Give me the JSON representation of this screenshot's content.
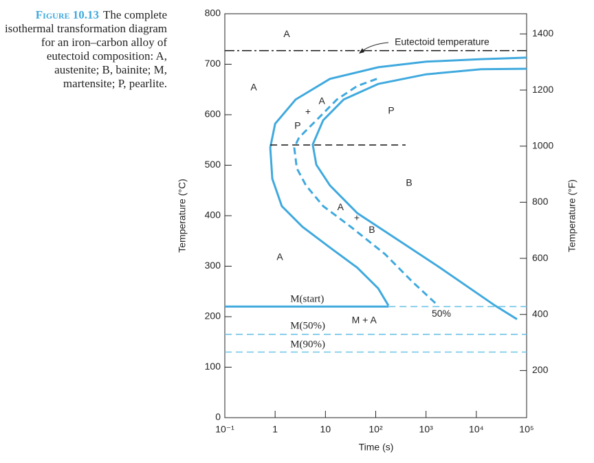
{
  "caption": {
    "label": "Figure 10.13",
    "text": "The complete isothermal transformation diagram for an iron–carbon alloy of eutectoid composition: A, austenite; B, bainite; M, martensite; P, pearlite."
  },
  "chart_data": {
    "type": "line",
    "xlabel": "Time (s)",
    "ylabel": "Temperature (°C)",
    "y2label": "Temperature (°F)",
    "xscale": "log",
    "xlim": [
      0.1,
      100000
    ],
    "ylim": [
      0,
      800
    ],
    "y2lim": [
      32,
      1472
    ],
    "xticks": [
      {
        "value": 0.1,
        "label": "10⁻¹"
      },
      1,
      10,
      {
        "value": 100,
        "label": "10²"
      },
      {
        "value": 1000,
        "label": "10³"
      },
      {
        "value": 10000,
        "label": "10⁴"
      },
      {
        "value": 100000,
        "label": "10⁵"
      }
    ],
    "yticks": [
      0,
      100,
      200,
      300,
      400,
      500,
      600,
      700,
      800
    ],
    "y2ticks": [
      200,
      400,
      600,
      800,
      1000,
      1200,
      1400
    ],
    "series": [
      {
        "color": "#3fa9de",
        "style": "solid",
        "x": [
          100000,
          12500,
          1000,
          112,
          12.3,
          2.56,
          1,
          0.8,
          0.88,
          1.36,
          3.5,
          12.3,
          43,
          112,
          179
        ],
        "values": [
          713,
          710,
          705,
          694,
          671,
          630,
          582,
          535,
          473,
          419,
          378,
          337,
          297,
          256,
          222
        ]
      },
      {
        "color": "#3fa9de",
        "style": "solid",
        "x": [
          100000,
          12500,
          1000,
          112,
          23,
          9,
          5.6,
          6.6,
          12.3,
          43,
          287,
          1900,
          23500,
          64300
        ],
        "values": [
          691,
          690,
          680,
          661,
          630,
          589,
          541,
          501,
          460,
          405,
          351,
          297,
          222,
          195
        ]
      },
      {
        "color": "#3fa9de",
        "style": "dashed",
        "x": [
          105,
          43,
          16.9,
          6.6,
          3.0,
          2.4,
          2.7,
          4.1,
          9,
          32,
          153,
          538,
          1730
        ],
        "values": [
          671,
          657,
          630,
          589,
          555,
          535,
          494,
          460,
          419,
          378,
          324,
          269,
          222
        ]
      },
      {
        "color": "#222222",
        "style": "dashdot",
        "x": [
          0.1,
          100000
        ],
        "values": [
          727,
          727
        ]
      },
      {
        "color": "#222222",
        "style": "dashed",
        "x": [
          0.8,
          393
        ],
        "values": [
          540,
          540
        ]
      },
      {
        "color": "#3fa9de",
        "style": "solid",
        "x": [
          0.1,
          180
        ],
        "values": [
          220,
          220
        ]
      },
      {
        "color": "#6cc3e6",
        "style": "dashed",
        "x": [
          180,
          100000
        ],
        "values": [
          220,
          220
        ]
      },
      {
        "color": "#6cc3e6",
        "style": "dashed",
        "x": [
          0.1,
          100000
        ],
        "values": [
          165,
          165
        ]
      },
      {
        "color": "#6cc3e6",
        "style": "dashed",
        "x": [
          0.1,
          100000
        ],
        "values": [
          130,
          130
        ]
      }
    ],
    "annotations": [
      {
        "text": "A",
        "x": 1.7,
        "y": 759
      },
      {
        "text": "A",
        "x": 0.375,
        "y": 653
      },
      {
        "text": "+",
        "x": 4.5,
        "y": 605
      },
      {
        "text": "A",
        "x": 8.5,
        "y": 626
      },
      {
        "text": "P",
        "x": 2.8,
        "y": 577
      },
      {
        "text": "P",
        "x": 203,
        "y": 607
      },
      {
        "text": "B",
        "x": 460,
        "y": 464
      },
      {
        "text": "A",
        "x": 20,
        "y": 416
      },
      {
        "text": "+",
        "x": 42,
        "y": 395
      },
      {
        "text": "B",
        "x": 84,
        "y": 371
      },
      {
        "text": "A",
        "x": 1.24,
        "y": 317
      },
      {
        "text": "M + A",
        "x": 59,
        "y": 192
      },
      {
        "text": "50%",
        "x": 2020,
        "y": 205
      },
      {
        "text": "M(start)",
        "x": 2.0,
        "y": 234
      },
      {
        "text": "M(50%)",
        "x": 2.0,
        "y": 181
      },
      {
        "text": "M(90%)",
        "x": 2.0,
        "y": 144
      },
      {
        "text": "Eutectoid temperature",
        "x": 2080,
        "y": 743
      }
    ]
  }
}
